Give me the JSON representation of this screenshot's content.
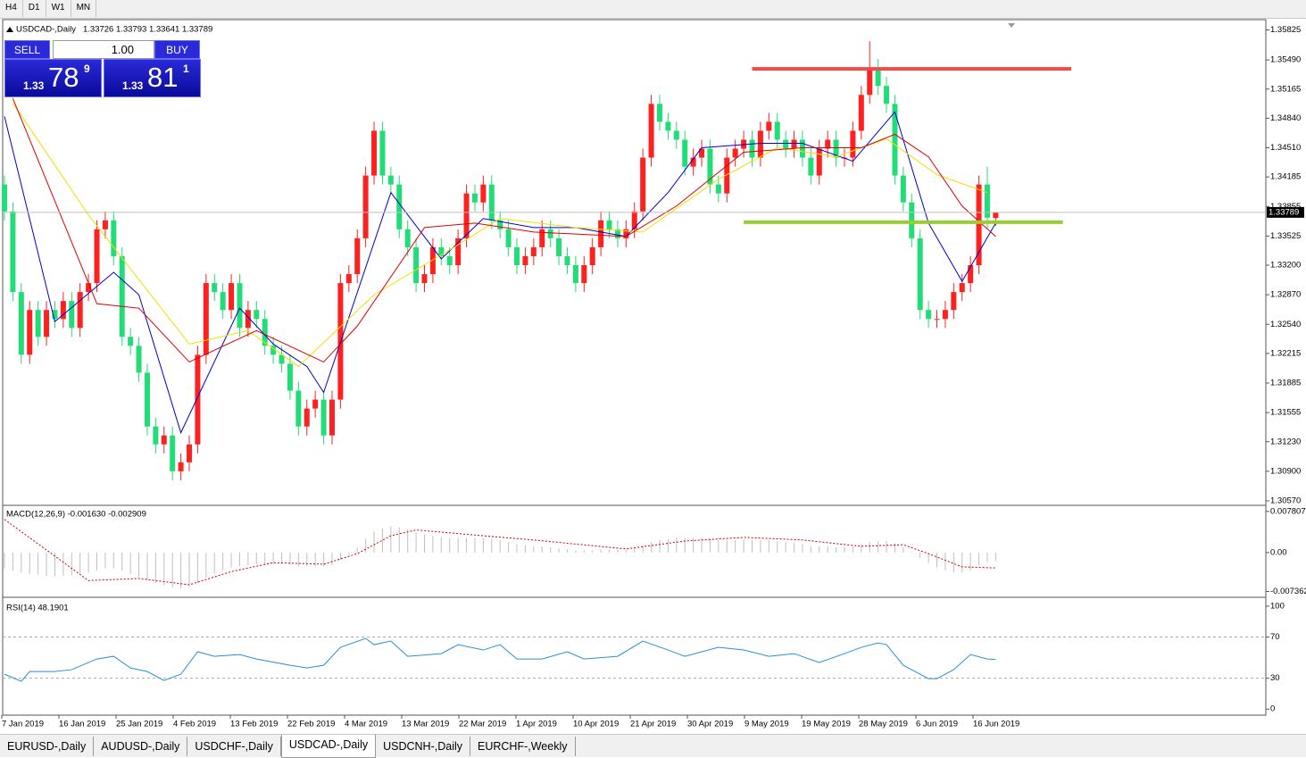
{
  "toolbar": {
    "timeframes": [
      "H4",
      "D1",
      "W1",
      "MN"
    ]
  },
  "trade_panel": {
    "sell": "SELL",
    "buy": "BUY",
    "lot": "1.00",
    "sell_price": {
      "big": "1.33",
      "main": "78",
      "pip": "9"
    },
    "buy_price": {
      "big": "1.33",
      "main": "81",
      "pip": "1"
    }
  },
  "tabs": [
    "EURUSD-,Daily",
    "AUDUSD-,Daily",
    "USDCHF-,Daily",
    "USDCAD-,Daily",
    "USDCNH-,Daily",
    "EURCHF-,Weekly"
  ],
  "active_tab": 3,
  "chart_data": [
    {
      "type": "candlestick",
      "title": "USDCAD-,Daily",
      "subtitle": "1.33726 1.33793 1.33641 1.33789",
      "up_color": "#ff2020",
      "down_color": "#22dd77",
      "ylim": [
        1.3055,
        1.3588
      ],
      "yticks": [
        1.35825,
        {
          "value": 1.3549,
          "label": "1.35490"
        },
        1.35165,
        {
          "value": 1.3484,
          "label": "1.34840"
        },
        {
          "value": 1.3451,
          "label": "1.34510"
        },
        1.34185,
        1.33855,
        1.33525,
        {
          "value": 1.332,
          "label": "1.33200"
        },
        {
          "value": 1.3287,
          "label": "1.32870"
        },
        {
          "value": 1.3254,
          "label": "1.32540"
        },
        1.32215,
        1.31885,
        1.31555,
        {
          "value": 1.3123,
          "label": "1.31230"
        },
        {
          "value": 1.309,
          "label": "1.30900"
        },
        {
          "value": 1.3057,
          "label": "1.30570"
        }
      ],
      "x_labels": [
        "7 Jan 2019",
        "16 Jan 2019",
        "25 Jan 2019",
        "4 Feb 2019",
        "13 Feb 2019",
        "22 Feb 2019",
        "4 Mar 2019",
        "13 Mar 2019",
        "22 Mar 2019",
        "1 Apr 2019",
        "10 Apr 2019",
        "21 Apr 2019",
        "30 Apr 2019",
        "9 May 2019",
        "19 May 2019",
        "28 May 2019",
        "6 Jun 2019",
        "16 Jun 2019"
      ],
      "open": [
        1.341,
        1.338,
        1.329,
        1.322,
        1.327,
        1.324,
        1.327,
        1.326,
        1.328,
        1.325,
        1.329,
        1.33,
        1.336,
        1.337,
        1.333,
        1.324,
        1.323,
        1.32,
        1.314,
        1.312,
        1.313,
        1.309,
        1.31,
        1.312,
        1.322,
        1.33,
        1.329,
        1.327,
        1.33,
        1.325,
        1.327,
        1.326,
        1.323,
        1.322,
        1.321,
        1.318,
        1.314,
        1.316,
        1.317,
        1.313,
        1.317,
        1.33,
        1.331,
        1.335,
        1.342,
        1.347,
        1.342,
        1.341,
        1.336,
        1.334,
        1.33,
        1.331,
        1.334,
        1.333,
        1.332,
        1.335,
        1.34,
        1.339,
        1.341,
        1.337,
        1.336,
        1.334,
        1.332,
        1.333,
        1.334,
        1.336,
        1.335,
        1.333,
        1.332,
        1.33,
        1.332,
        1.334,
        1.337,
        1.336,
        1.335,
        1.336,
        1.338,
        1.344,
        1.35,
        1.348,
        1.347,
        1.346,
        1.343,
        1.344,
        1.345,
        1.341,
        1.34,
        1.344,
        1.345,
        1.346,
        1.344,
        1.347,
        1.348,
        1.346,
        1.345,
        1.346,
        1.344,
        1.342,
        1.345,
        1.346,
        1.344,
        1.344,
        1.347,
        1.351,
        1.354,
        1.352,
        1.35,
        1.342,
        1.339,
        1.335,
        1.327,
        1.326,
        1.326,
        1.327,
        1.329,
        1.33,
        1.332,
        1.341,
        1.33726
      ],
      "high": [
        1.342,
        1.339,
        1.33,
        1.328,
        1.328,
        1.328,
        1.328,
        1.329,
        1.329,
        1.33,
        1.331,
        1.337,
        1.338,
        1.338,
        1.334,
        1.325,
        1.324,
        1.321,
        1.315,
        1.314,
        1.314,
        1.311,
        1.313,
        1.323,
        1.331,
        1.331,
        1.33,
        1.331,
        1.331,
        1.328,
        1.328,
        1.327,
        1.324,
        1.323,
        1.322,
        1.319,
        1.317,
        1.318,
        1.318,
        1.318,
        1.331,
        1.332,
        1.336,
        1.343,
        1.348,
        1.348,
        1.343,
        1.342,
        1.337,
        1.335,
        1.332,
        1.335,
        1.335,
        1.334,
        1.336,
        1.341,
        1.341,
        1.342,
        1.342,
        1.338,
        1.337,
        1.335,
        1.334,
        1.335,
        1.337,
        1.337,
        1.336,
        1.334,
        1.333,
        1.333,
        1.335,
        1.338,
        1.338,
        1.337,
        1.337,
        1.339,
        1.345,
        1.351,
        1.351,
        1.349,
        1.348,
        1.347,
        1.345,
        1.346,
        1.346,
        1.342,
        1.345,
        1.346,
        1.347,
        1.347,
        1.348,
        1.349,
        1.349,
        1.347,
        1.347,
        1.347,
        1.345,
        1.346,
        1.347,
        1.347,
        1.345,
        1.348,
        1.352,
        1.357,
        1.355,
        1.353,
        1.351,
        1.343,
        1.34,
        1.336,
        1.328,
        1.327,
        1.328,
        1.33,
        1.331,
        1.333,
        1.342,
        1.343,
        1.33793
      ],
      "low": [
        1.337,
        1.328,
        1.321,
        1.321,
        1.323,
        1.323,
        1.325,
        1.325,
        1.324,
        1.324,
        1.328,
        1.329,
        1.335,
        1.332,
        1.323,
        1.322,
        1.319,
        1.313,
        1.311,
        1.311,
        1.308,
        1.308,
        1.309,
        1.311,
        1.321,
        1.328,
        1.326,
        1.326,
        1.324,
        1.324,
        1.325,
        1.322,
        1.321,
        1.32,
        1.317,
        1.313,
        1.313,
        1.315,
        1.312,
        1.312,
        1.316,
        1.329,
        1.33,
        1.334,
        1.341,
        1.341,
        1.34,
        1.335,
        1.333,
        1.329,
        1.329,
        1.33,
        1.332,
        1.331,
        1.331,
        1.334,
        1.338,
        1.338,
        1.336,
        1.335,
        1.333,
        1.331,
        1.331,
        1.332,
        1.333,
        1.334,
        1.332,
        1.331,
        1.329,
        1.329,
        1.331,
        1.333,
        1.335,
        1.334,
        1.334,
        1.335,
        1.337,
        1.343,
        1.347,
        1.346,
        1.345,
        1.342,
        1.342,
        1.343,
        1.34,
        1.339,
        1.339,
        1.343,
        1.344,
        1.343,
        1.343,
        1.346,
        1.345,
        1.344,
        1.344,
        1.343,
        1.341,
        1.341,
        1.344,
        1.343,
        1.343,
        1.343,
        1.346,
        1.35,
        1.351,
        1.349,
        1.341,
        1.338,
        1.334,
        1.326,
        1.325,
        1.325,
        1.325,
        1.326,
        1.328,
        1.329,
        1.331,
        1.336,
        1.33641
      ],
      "close": [
        1.338,
        1.329,
        1.322,
        1.327,
        1.324,
        1.327,
        1.326,
        1.328,
        1.325,
        1.329,
        1.33,
        1.336,
        1.337,
        1.333,
        1.324,
        1.323,
        1.32,
        1.314,
        1.312,
        1.313,
        1.309,
        1.31,
        1.312,
        1.322,
        1.33,
        1.329,
        1.327,
        1.33,
        1.325,
        1.327,
        1.326,
        1.323,
        1.322,
        1.321,
        1.318,
        1.314,
        1.316,
        1.317,
        1.313,
        1.317,
        1.33,
        1.331,
        1.335,
        1.342,
        1.347,
        1.342,
        1.341,
        1.336,
        1.334,
        1.33,
        1.331,
        1.334,
        1.333,
        1.332,
        1.335,
        1.34,
        1.339,
        1.341,
        1.337,
        1.336,
        1.334,
        1.332,
        1.333,
        1.334,
        1.336,
        1.335,
        1.333,
        1.332,
        1.33,
        1.332,
        1.334,
        1.337,
        1.336,
        1.335,
        1.336,
        1.338,
        1.344,
        1.35,
        1.348,
        1.347,
        1.346,
        1.343,
        1.344,
        1.345,
        1.341,
        1.34,
        1.344,
        1.345,
        1.346,
        1.344,
        1.347,
        1.348,
        1.346,
        1.345,
        1.346,
        1.344,
        1.342,
        1.345,
        1.346,
        1.344,
        1.344,
        1.347,
        1.351,
        1.354,
        1.352,
        1.35,
        1.342,
        1.339,
        1.335,
        1.327,
        1.326,
        1.326,
        1.327,
        1.329,
        1.33,
        1.332,
        1.341,
        1.3373,
        1.33789
      ],
      "series": [
        {
          "color": "#0000cc",
          "x": [
            0,
            6,
            13,
            16,
            21,
            28,
            32,
            36,
            38,
            46,
            52,
            57,
            63,
            68,
            74,
            79,
            83,
            90,
            95,
            101,
            106,
            110,
            114,
            118
          ],
          "values": [
            1.3486,
            1.3257,
            1.3312,
            1.3287,
            1.3133,
            1.3272,
            1.3232,
            1.3207,
            1.3178,
            1.3401,
            1.3327,
            1.3372,
            1.3362,
            1.3362,
            1.3352,
            1.3401,
            1.3451,
            1.3456,
            1.3456,
            1.3436,
            1.3491,
            1.3367,
            1.3302,
            1.3367
          ]
        },
        {
          "color": "#f0e000",
          "x": [
            1,
            10,
            22,
            29,
            35,
            44,
            53,
            59,
            68,
            76,
            85,
            92,
            99,
            105,
            111,
            117
          ],
          "values": [
            1.3501,
            1.3376,
            1.3232,
            1.3247,
            1.3207,
            1.3287,
            1.3337,
            1.3372,
            1.3362,
            1.3357,
            1.3416,
            1.3451,
            1.3441,
            1.3461,
            1.3421,
            1.3401
          ]
        },
        {
          "color": "#e00000",
          "x": [
            1,
            11,
            16,
            22,
            30,
            38,
            42,
            50,
            56,
            63,
            74,
            80,
            88,
            95,
            102,
            106,
            110,
            114,
            118
          ],
          "values": [
            1.3506,
            1.3277,
            1.3272,
            1.3212,
            1.3247,
            1.3212,
            1.3252,
            1.3362,
            1.3367,
            1.3357,
            1.3352,
            1.3386,
            1.3446,
            1.3451,
            1.3451,
            1.3466,
            1.3441,
            1.3386,
            1.3352
          ]
        }
      ],
      "levels": [
        {
          "value": 1.3539,
          "color": "#f04a4a",
          "x": [
            89,
            127
          ]
        },
        {
          "value": 1.3368,
          "color": "#9acd32",
          "x": [
            88,
            126
          ]
        }
      ],
      "last_price": 1.33789
    },
    {
      "type": "macd",
      "title": "MACD(12,26,9) -0.001630 -0.002909",
      "ylim": [
        -0.0083,
        0.0088
      ],
      "yticks": [
        0.007807,
        {
          "value": 0,
          "label": "0.00"
        },
        -0.007362
      ],
      "hist_color": "#c0c0c0",
      "signal_color": "#cc0000",
      "values": [
        -0.003,
        -0.0034,
        -0.0038,
        -0.004,
        -0.0042,
        -0.0044,
        -0.0045,
        -0.0044,
        -0.0043,
        -0.004,
        -0.0038,
        -0.0034,
        -0.003,
        -0.003,
        -0.0034,
        -0.004,
        -0.0046,
        -0.0052,
        -0.0058,
        -0.0062,
        -0.0066,
        -0.0068,
        -0.0066,
        -0.0058,
        -0.0048,
        -0.004,
        -0.0034,
        -0.0028,
        -0.0026,
        -0.0024,
        -0.0022,
        -0.0022,
        -0.0022,
        -0.0022,
        -0.0024,
        -0.0026,
        -0.0026,
        -0.0026,
        -0.0026,
        -0.0024,
        -0.0014,
        -0.0004,
        0.001,
        0.0026,
        0.004,
        0.0046,
        0.005,
        0.0048,
        0.0044,
        0.0038,
        0.0034,
        0.0032,
        0.003,
        0.0028,
        0.0028,
        0.0028,
        0.0028,
        0.0028,
        0.0026,
        0.0024,
        0.002,
        0.0016,
        0.0014,
        0.0012,
        0.0012,
        0.001,
        0.0008,
        0.0006,
        0.0004,
        0.0004,
        0.0004,
        0.0006,
        0.0006,
        0.0006,
        0.0006,
        0.0008,
        0.0014,
        0.002,
        0.0024,
        0.0026,
        0.0028,
        0.0028,
        0.0028,
        0.0028,
        0.0026,
        0.0024,
        0.0024,
        0.0024,
        0.0024,
        0.0024,
        0.0024,
        0.0024,
        0.0022,
        0.002,
        0.0018,
        0.0016,
        0.0012,
        0.0012,
        0.0012,
        0.001,
        0.001,
        0.0012,
        0.0016,
        0.002,
        0.0022,
        0.0022,
        0.0018,
        0.001,
        0.0002,
        -0.001,
        -0.002,
        -0.0028,
        -0.0034,
        -0.0038,
        -0.0038,
        -0.0034,
        -0.0024,
        -0.0018,
        -0.0016
      ],
      "signal": {
        "x": [
          0,
          10,
          16,
          22,
          27,
          32,
          38,
          42,
          46,
          49,
          57,
          63,
          74,
          81,
          88,
          95,
          102,
          107,
          110,
          114,
          118
        ],
        "values": [
          0.0063,
          -0.0053,
          -0.0049,
          -0.0061,
          -0.0036,
          -0.0019,
          -0.0022,
          -0.0002,
          0.0032,
          0.0043,
          0.0032,
          0.0024,
          0.0007,
          0.0022,
          0.0029,
          0.0024,
          0.0012,
          0.0015,
          -0.0002,
          -0.0027,
          -0.0029
        ]
      }
    },
    {
      "type": "line",
      "title": "RSI(14) 48.1901",
      "ylim": [
        -5,
        106
      ],
      "yticks": [
        100,
        70,
        30,
        0
      ],
      "levels": [
        70,
        30
      ],
      "series": [
        {
          "color": "#2a8fd8",
          "x": [
            0,
            2,
            3,
            6,
            8,
            11,
            13,
            15,
            17,
            19,
            21,
            23,
            25,
            28,
            30,
            34,
            36,
            38,
            40,
            43,
            44,
            46,
            48,
            52,
            54,
            57,
            59,
            61,
            64,
            67,
            69,
            73,
            76,
            79,
            81,
            85,
            88,
            91,
            94,
            97,
            100,
            102,
            104,
            105,
            107,
            110,
            111,
            113,
            115,
            117,
            118
          ],
          "values": [
            33.9,
            27.0,
            36.5,
            36.5,
            38.3,
            48.7,
            51.3,
            40.0,
            36.5,
            27.8,
            33.9,
            55.7,
            51.3,
            53.0,
            48.7,
            42.6,
            40.0,
            42.6,
            60.0,
            68.7,
            62.6,
            66.1,
            51.3,
            53.9,
            62.6,
            57.4,
            62.6,
            48.7,
            48.7,
            55.7,
            48.7,
            51.3,
            66.1,
            57.4,
            51.3,
            60.0,
            57.4,
            51.3,
            53.9,
            45.2,
            53.9,
            60.0,
            64.3,
            62.6,
            42.6,
            29.6,
            29.6,
            38.3,
            53.0,
            48.7,
            48.1901
          ]
        }
      ]
    }
  ]
}
